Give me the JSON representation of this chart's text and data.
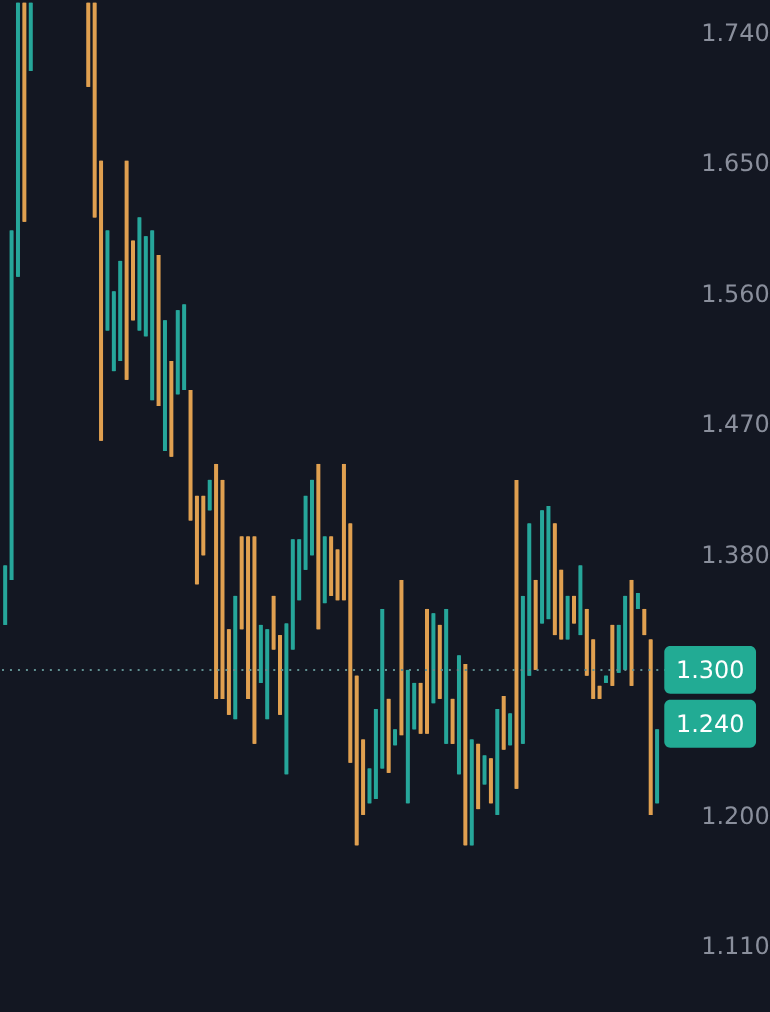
{
  "chart_data": {
    "type": "candlestick",
    "categories": [
      null,
      null,
      null,
      null,
      null,
      null,
      null,
      null,
      null,
      null,
      null,
      null,
      null,
      null,
      null,
      null,
      null,
      null,
      null,
      null,
      null,
      null,
      null,
      null,
      null,
      null,
      null,
      null,
      null,
      null,
      null,
      null,
      null,
      null,
      null,
      null,
      null,
      null,
      null,
      null,
      null,
      null,
      null,
      null,
      null,
      null,
      null,
      null,
      null,
      null,
      null,
      null,
      null,
      null,
      null,
      null,
      null,
      null,
      null,
      null,
      null,
      null,
      null,
      null,
      null,
      null,
      null,
      null,
      null,
      null,
      null,
      null,
      null,
      null,
      null,
      null,
      null,
      null,
      null,
      null,
      null,
      null,
      null,
      null,
      null,
      null,
      null,
      null,
      null,
      null,
      null,
      null,
      null,
      null,
      null,
      null,
      null,
      null,
      null,
      null,
      null,
      null,
      null
    ],
    "ohlc": [
      [
        1.331,
        1.372,
        1.331,
        1.372
      ],
      [
        1.362,
        1.603,
        1.362,
        1.603
      ],
      [
        1.571,
        1.76,
        1.571,
        1.76
      ],
      [
        1.76,
        1.76,
        1.609,
        1.609
      ],
      [
        1.713,
        1.76,
        1.713,
        1.76
      ],
      null,
      null,
      null,
      null,
      null,
      null,
      null,
      null,
      [
        1.76,
        1.76,
        1.702,
        1.702
      ],
      [
        1.76,
        1.76,
        1.612,
        1.612
      ],
      [
        1.651,
        1.651,
        1.458,
        1.458
      ],
      [
        1.534,
        1.603,
        1.534,
        1.603
      ],
      [
        1.506,
        1.561,
        1.506,
        1.561
      ],
      [
        1.513,
        1.582,
        1.513,
        1.582
      ],
      [
        1.651,
        1.651,
        1.5,
        1.5
      ],
      [
        1.596,
        1.596,
        1.541,
        1.541
      ],
      [
        1.534,
        1.612,
        1.534,
        1.612
      ],
      [
        1.53,
        1.599,
        1.53,
        1.599
      ],
      [
        1.486,
        1.603,
        1.486,
        1.603
      ],
      [
        1.586,
        1.586,
        1.482,
        1.482
      ],
      [
        1.451,
        1.541,
        1.451,
        1.541
      ],
      [
        1.513,
        1.513,
        1.447,
        1.447
      ],
      [
        1.49,
        1.548,
        1.49,
        1.548
      ],
      [
        1.493,
        1.552,
        1.493,
        1.552
      ],
      [
        1.493,
        1.493,
        1.403,
        1.403
      ],
      [
        1.42,
        1.42,
        1.359,
        1.359
      ],
      [
        1.42,
        1.42,
        1.379,
        1.379
      ],
      [
        1.41,
        1.431,
        1.41,
        1.431
      ],
      [
        1.442,
        1.442,
        1.28,
        1.28
      ],
      [
        1.431,
        1.431,
        1.28,
        1.28
      ],
      [
        1.328,
        1.328,
        1.269,
        1.269
      ],
      [
        1.266,
        1.351,
        1.266,
        1.351
      ],
      [
        1.392,
        1.392,
        1.328,
        1.328
      ],
      [
        1.392,
        1.392,
        1.28,
        1.28
      ],
      [
        1.392,
        1.392,
        1.249,
        1.249
      ],
      [
        1.291,
        1.331,
        1.291,
        1.331
      ],
      [
        1.266,
        1.328,
        1.266,
        1.328
      ],
      [
        1.351,
        1.351,
        1.314,
        1.314
      ],
      [
        1.324,
        1.324,
        1.269,
        1.269
      ],
      [
        1.228,
        1.332,
        1.228,
        1.332
      ],
      [
        1.314,
        1.39,
        1.314,
        1.39
      ],
      [
        1.348,
        1.39,
        1.348,
        1.39
      ],
      [
        1.369,
        1.42,
        1.369,
        1.42
      ],
      [
        1.379,
        1.431,
        1.379,
        1.431
      ],
      [
        1.442,
        1.442,
        1.328,
        1.328
      ],
      [
        1.346,
        1.392,
        1.346,
        1.392
      ],
      [
        1.392,
        1.392,
        1.351,
        1.351
      ],
      [
        1.383,
        1.383,
        1.348,
        1.348
      ],
      [
        1.442,
        1.442,
        1.348,
        1.348
      ],
      [
        1.401,
        1.401,
        1.236,
        1.236
      ],
      [
        1.296,
        1.296,
        1.179,
        1.179
      ],
      [
        1.252,
        1.252,
        1.2,
        1.2
      ],
      [
        1.208,
        1.232,
        1.208,
        1.232
      ],
      [
        1.211,
        1.273,
        1.211,
        1.273
      ],
      [
        1.232,
        1.342,
        1.232,
        1.342
      ],
      [
        1.28,
        1.28,
        1.229,
        1.229
      ],
      [
        1.248,
        1.259,
        1.248,
        1.259
      ],
      [
        1.362,
        1.362,
        1.255,
        1.255
      ],
      [
        1.208,
        1.3,
        1.208,
        1.3
      ],
      [
        1.259,
        1.291,
        1.259,
        1.291
      ],
      [
        1.291,
        1.291,
        1.256,
        1.256
      ],
      [
        1.342,
        1.342,
        1.256,
        1.256
      ],
      [
        1.277,
        1.339,
        1.277,
        1.339
      ],
      [
        1.331,
        1.331,
        1.28,
        1.28
      ],
      [
        1.249,
        1.342,
        1.249,
        1.342
      ],
      [
        1.28,
        1.28,
        1.249,
        1.249
      ],
      [
        1.228,
        1.31,
        1.228,
        1.31
      ],
      [
        1.304,
        1.304,
        1.179,
        1.179
      ],
      [
        1.179,
        1.252,
        1.179,
        1.252
      ],
      [
        1.249,
        1.249,
        1.204,
        1.204
      ],
      [
        1.221,
        1.241,
        1.221,
        1.241
      ],
      [
        1.239,
        1.239,
        1.208,
        1.208
      ],
      [
        1.2,
        1.273,
        1.2,
        1.273
      ],
      [
        1.282,
        1.282,
        1.245,
        1.245
      ],
      [
        1.248,
        1.27,
        1.248,
        1.27
      ],
      [
        1.431,
        1.431,
        1.218,
        1.218
      ],
      [
        1.249,
        1.351,
        1.249,
        1.351
      ],
      [
        1.296,
        1.401,
        1.296,
        1.401
      ],
      [
        1.362,
        1.362,
        1.3,
        1.3
      ],
      [
        1.332,
        1.41,
        1.332,
        1.41
      ],
      [
        1.335,
        1.413,
        1.335,
        1.413
      ],
      [
        1.401,
        1.401,
        1.324,
        1.324
      ],
      [
        1.369,
        1.369,
        1.321,
        1.321
      ],
      [
        1.321,
        1.351,
        1.321,
        1.351
      ],
      [
        1.351,
        1.351,
        1.332,
        1.332
      ],
      [
        1.324,
        1.372,
        1.324,
        1.372
      ],
      [
        1.342,
        1.342,
        1.296,
        1.296
      ],
      [
        1.321,
        1.321,
        1.28,
        1.28
      ],
      [
        1.289,
        1.289,
        1.28,
        1.28
      ],
      [
        1.291,
        1.296,
        1.291,
        1.296
      ],
      [
        1.331,
        1.331,
        1.289,
        1.289
      ],
      [
        1.298,
        1.331,
        1.298,
        1.331
      ],
      [
        1.3,
        1.351,
        1.3,
        1.351
      ],
      [
        1.362,
        1.362,
        1.289,
        1.289
      ],
      [
        1.342,
        1.353,
        1.342,
        1.353
      ],
      [
        1.342,
        1.342,
        1.324,
        1.324
      ],
      [
        1.321,
        1.321,
        1.2,
        1.2
      ],
      [
        1.208,
        1.259,
        1.208,
        1.259
      ]
    ],
    "ylim": [
      1.065,
      1.761
    ],
    "yticks": [
      {
        "value": 1.11,
        "label": "1.110"
      },
      {
        "value": 1.2,
        "label": "1.200"
      },
      {
        "value": 1.38,
        "label": "1.380"
      },
      {
        "value": 1.47,
        "label": "1.470"
      },
      {
        "value": 1.56,
        "label": "1.560"
      },
      {
        "value": 1.65,
        "label": "1.650"
      },
      {
        "value": 1.74,
        "label": "1.740"
      }
    ],
    "tick_labels": "y",
    "grid": false,
    "ref_lines": [
      {
        "axis": "y",
        "value": 1.3,
        "label": "1.300",
        "color": "#5f8f90",
        "line_style": "dotted"
      }
    ],
    "annotations": [
      "1.240"
    ]
  }
}
